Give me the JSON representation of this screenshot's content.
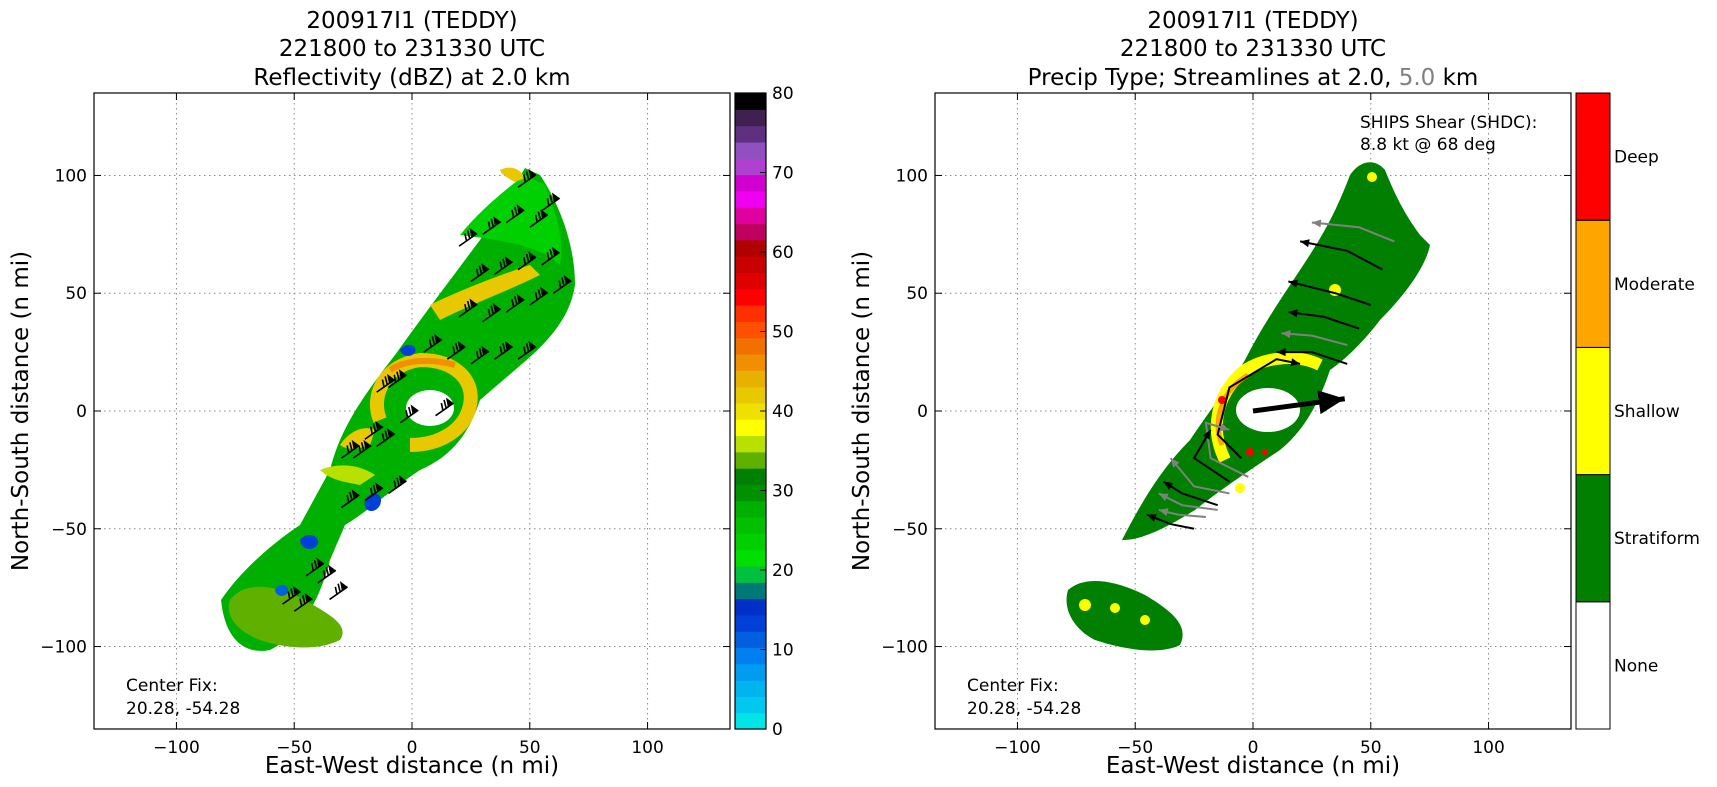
{
  "chart_data": [
    {
      "type": "heatmap",
      "title_lines": [
        "200917I1 (TEDDY)",
        "221800 to 231330 UTC",
        "Reflectivity (dBZ) at 2.0 km"
      ],
      "xlabel": "East-West distance (n mi)",
      "ylabel": "North-South distance (n mi)",
      "xlim": [
        -135,
        135
      ],
      "ylim": [
        -135,
        135
      ],
      "xticks": [
        -100,
        -50,
        0,
        50,
        100
      ],
      "yticks": [
        -100,
        -50,
        0,
        50,
        100
      ],
      "grid": true,
      "annotation": [
        "Center Fix:",
        "20.28, -54.28"
      ],
      "colorbar": {
        "min": 0,
        "max": 80,
        "ticks": [
          0,
          10,
          20,
          30,
          40,
          50,
          60,
          70,
          80
        ],
        "colors": [
          "#00e5e5",
          "#00c8ef",
          "#00b4f0",
          "#009cf0",
          "#0080f0",
          "#0060e0",
          "#0040d8",
          "#0030c8",
          "#007878",
          "#00c040",
          "#00e000",
          "#00d000",
          "#00c000",
          "#00b000",
          "#009000",
          "#008000",
          "#60b000",
          "#b8e000",
          "#ffff00",
          "#f0e000",
          "#e8c800",
          "#e8b000",
          "#f09000",
          "#f07000",
          "#ff5000",
          "#ff3000",
          "#ff0000",
          "#e00000",
          "#c80000",
          "#b00000",
          "#c00060",
          "#e000a0",
          "#f000f0",
          "#d000d0",
          "#b040d0",
          "#9050c0",
          "#603080",
          "#402050",
          "#000000"
        ]
      }
    },
    {
      "type": "heatmap",
      "title_lines": [
        "200917I1 (TEDDY)",
        "221800 to 231330 UTC"
      ],
      "title_line3_parts": [
        "Precip Type; Streamlines at 2.0, ",
        "5.0",
        " km"
      ],
      "xlabel": "East-West distance (n mi)",
      "ylabel": "North-South distance (n mi)",
      "xlim": [
        -135,
        135
      ],
      "ylim": [
        -135,
        135
      ],
      "xticks": [
        -100,
        -50,
        0,
        50,
        100
      ],
      "yticks": [
        -100,
        -50,
        0,
        50,
        100
      ],
      "grid": true,
      "annotation": [
        "Center Fix:",
        "20.28, -54.28"
      ],
      "shear_text": [
        "SHIPS Shear (SHDC):",
        "8.8 kt @ 68 deg"
      ],
      "shear": {
        "speed_kt": 8.8,
        "direction_deg": 68
      },
      "categories": [
        "None",
        "Stratiform",
        "Shallow",
        "Moderate",
        "Deep"
      ],
      "category_colors": [
        "#ffffff",
        "#007f00",
        "#ffff00",
        "#ffa500",
        "#ff0000"
      ]
    }
  ],
  "colors": {
    "grid": "#888888",
    "barb": "#000000",
    "stream_low": "#000000",
    "stream_high": "#808080",
    "title_accent": "#808080"
  }
}
